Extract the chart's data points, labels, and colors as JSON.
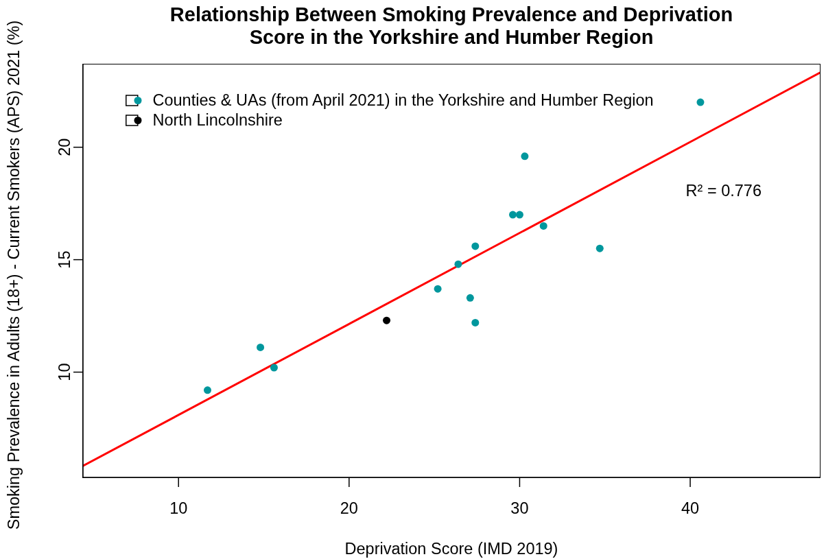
{
  "chart_data": {
    "type": "scatter",
    "title": "Relationship Between Smoking Prevalence and Deprivation Score in the Yorkshire and Humber Region",
    "xlabel": "Deprivation Score (IMD 2019)",
    "ylabel": "Smoking Prevalence in Adults (18+) - Current Smokers (APS) 2021 (%)",
    "xlim": [
      4.4,
      47.6
    ],
    "xticks": [
      10,
      20,
      30,
      40
    ],
    "ylim": [
      5.32,
      23.68
    ],
    "yticks": [
      10,
      15,
      20
    ],
    "legend": "top left",
    "marker": "circle",
    "annotations": [
      "R² = 0.776"
    ],
    "series": [
      {
        "name": "Counties & UAs (from April 2021) in the Yorkshire and Humber Region",
        "color": "#00979d",
        "x": [
          11.7,
          14.8,
          15.6,
          25.2,
          26.4,
          27.1,
          27.4,
          27.4,
          29.6,
          30.0,
          30.3,
          31.4,
          34.7,
          40.6
        ],
        "values": [
          9.2,
          11.1,
          10.2,
          13.7,
          14.8,
          13.3,
          12.2,
          15.6,
          17.0,
          17.0,
          19.6,
          16.5,
          15.5,
          22.0
        ]
      },
      {
        "name": "North Lincolnshire",
        "color": "#000000",
        "x": [
          22.2
        ],
        "values": [
          12.3
        ]
      },
      {
        "type": "line",
        "color": "#ff0000",
        "marker": "none",
        "line_style": "solid",
        "x": [
          4.4,
          47.6
        ],
        "values": [
          5.83,
          23.31
        ]
      }
    ]
  }
}
